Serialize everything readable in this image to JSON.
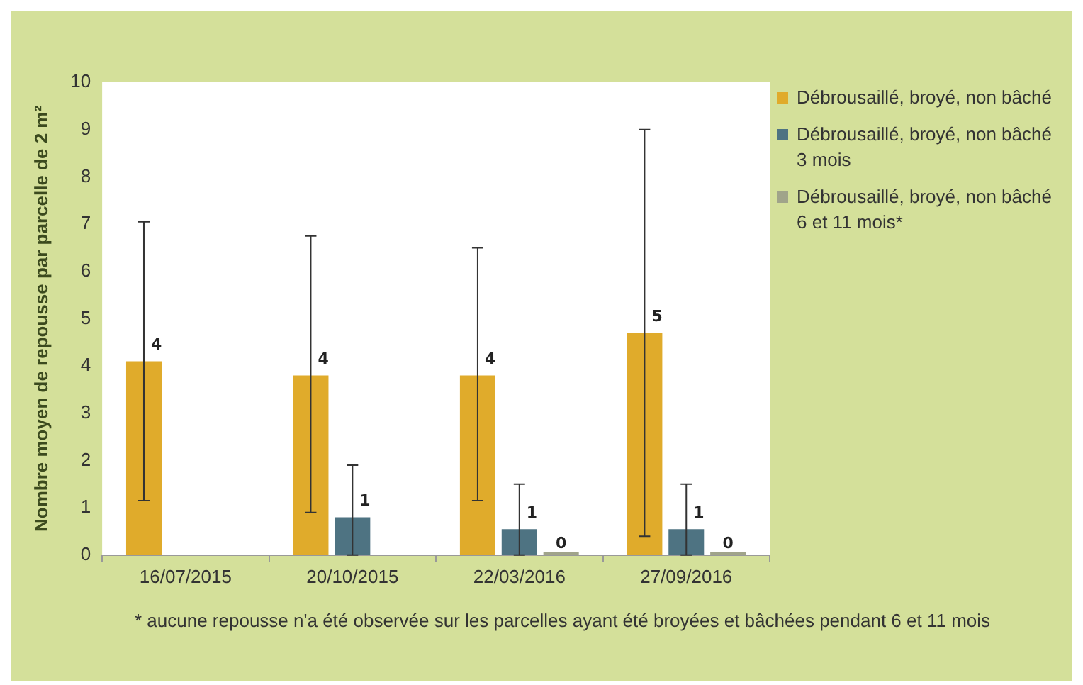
{
  "chart_data": {
    "type": "bar",
    "ylabel": "Nombre moyen de repousse par parcelle de 2 m²",
    "categories": [
      "16/07/2015",
      "20/10/2015",
      "22/03/2016",
      "27/09/2016"
    ],
    "series": [
      {
        "name": "Débrousaillé, broyé, non bâché",
        "color": "#e0ab2b",
        "values": [
          4.1,
          3.8,
          3.8,
          4.7
        ],
        "value_labels": [
          "4",
          "4",
          "4",
          "5"
        ],
        "errors": [
          [
            1.15,
            7.05
          ],
          [
            0.9,
            6.75
          ],
          [
            1.15,
            6.5
          ],
          [
            0.4,
            9.0
          ]
        ]
      },
      {
        "name": "Débrousaillé, broyé, non bâché 3 mois",
        "color": "#4e7382",
        "values": [
          null,
          0.8,
          0.55,
          0.55
        ],
        "value_labels": [
          null,
          "1",
          "1",
          "1"
        ],
        "errors": [
          null,
          [
            0,
            1.9
          ],
          [
            0,
            1.5
          ],
          [
            0,
            1.5
          ]
        ]
      },
      {
        "name": "Débrousaillé, broyé, non bâché 6 et 11 mois*",
        "color": "#a0a48a",
        "values": [
          null,
          null,
          0,
          0
        ],
        "value_labels": [
          null,
          null,
          "0",
          "0"
        ]
      }
    ],
    "ylim": [
      0,
      10
    ],
    "yticks": [
      0,
      1,
      2,
      3,
      4,
      5,
      6,
      7,
      8,
      9,
      10
    ],
    "grid": false,
    "legend": "right",
    "annotations": [
      "* aucune repousse n'a été observée sur les parcelles ayant été broyées et bâchées pendant 6 et 11 mois"
    ]
  }
}
